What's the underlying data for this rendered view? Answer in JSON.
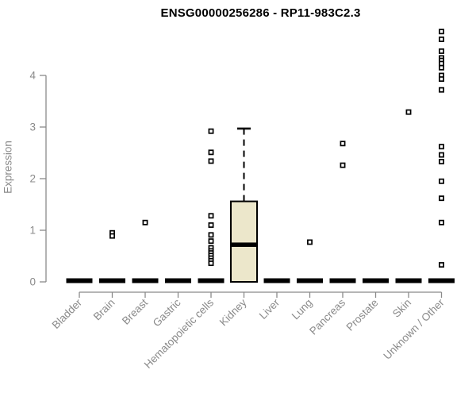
{
  "page": {
    "background": "#ffffff"
  },
  "chart_data": {
    "type": "boxplot",
    "title": "ENSG00000256286 - RP11-983C2.3",
    "ylabel": "Expression",
    "xlabel": "",
    "ylim": [
      0,
      4.9
    ],
    "yticks": [
      0,
      1,
      2,
      3,
      4
    ],
    "grid": false,
    "legend": "none",
    "categories": [
      "Bladder",
      "Brain",
      "Breast",
      "Gastric",
      "Hematopoietic cells",
      "Kidney",
      "Liver",
      "Lung",
      "Pancreas",
      "Prostate",
      "Skin",
      "Unknown / Other"
    ],
    "series": [
      {
        "name": "Bladder",
        "q1": 0,
        "median": 0,
        "q3": 0,
        "whisker_low": 0,
        "whisker_high": 0,
        "outliers": []
      },
      {
        "name": "Brain",
        "q1": 0,
        "median": 0,
        "q3": 0,
        "whisker_low": 0,
        "whisker_high": 0,
        "outliers": [
          0.95,
          0.89
        ]
      },
      {
        "name": "Breast",
        "q1": 0,
        "median": 0,
        "q3": 0,
        "whisker_low": 0,
        "whisker_high": 0,
        "outliers": [
          1.15
        ]
      },
      {
        "name": "Gastric",
        "q1": 0,
        "median": 0,
        "q3": 0,
        "whisker_low": 0,
        "whisker_high": 0,
        "outliers": []
      },
      {
        "name": "Hematopoietic cells",
        "q1": 0,
        "median": 0,
        "q3": 0,
        "whisker_low": 0,
        "whisker_high": 0,
        "outliers": [
          2.92,
          2.51,
          2.34,
          1.28,
          1.1,
          0.91,
          0.79,
          0.66,
          0.6,
          0.56,
          0.51,
          0.46,
          0.41,
          0.36
        ]
      },
      {
        "name": "Kidney",
        "q1": 0,
        "median": 0.72,
        "q3": 1.56,
        "whisker_low": 0,
        "whisker_high": 2.97,
        "outliers": []
      },
      {
        "name": "Liver",
        "q1": 0,
        "median": 0,
        "q3": 0,
        "whisker_low": 0,
        "whisker_high": 0,
        "outliers": []
      },
      {
        "name": "Lung",
        "q1": 0,
        "median": 0,
        "q3": 0,
        "whisker_low": 0,
        "whisker_high": 0,
        "outliers": [
          0.77
        ]
      },
      {
        "name": "Pancreas",
        "q1": 0,
        "median": 0,
        "q3": 0,
        "whisker_low": 0,
        "whisker_high": 0,
        "outliers": [
          2.68,
          2.26
        ]
      },
      {
        "name": "Prostate",
        "q1": 0,
        "median": 0,
        "q3": 0,
        "whisker_low": 0,
        "whisker_high": 0,
        "outliers": []
      },
      {
        "name": "Skin",
        "q1": 0,
        "median": 0,
        "q3": 0,
        "whisker_low": 0,
        "whisker_high": 0,
        "outliers": [
          3.29
        ]
      },
      {
        "name": "Unknown / Other",
        "q1": 0,
        "median": 0,
        "q3": 0,
        "whisker_low": 0,
        "whisker_high": 0,
        "outliers": [
          4.85,
          4.7,
          4.47,
          4.34,
          4.29,
          4.23,
          4.15,
          4.0,
          3.93,
          3.72,
          2.62,
          2.46,
          2.33,
          1.95,
          1.62,
          1.15,
          0.33
        ]
      }
    ],
    "colors": {
      "box_fill": "#ECE7CB",
      "box_stroke": "#000000",
      "median": "#000000",
      "whisker": "#000000",
      "outlier_stroke": "#000000",
      "outlier_fill": "#ffffff",
      "axis": "#8a8a8a",
      "tick_label": "#8a8a8a",
      "title": "#000000"
    }
  }
}
